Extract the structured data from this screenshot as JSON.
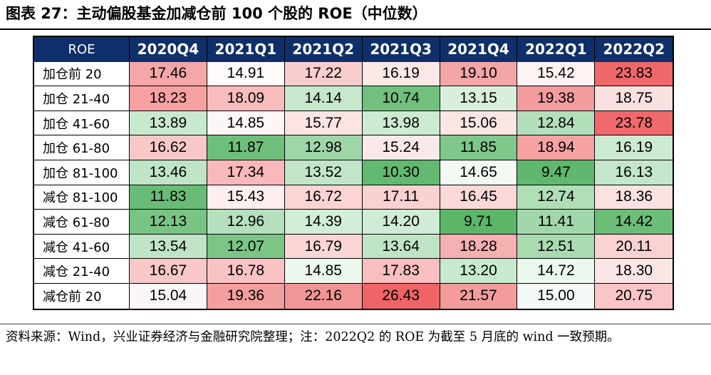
{
  "title": "图表 27：主动偏股基金加减仓前 100 个股的 ROE（中位数）",
  "table": {
    "corner_label": "ROE",
    "columns": [
      "2020Q4",
      "2021Q1",
      "2021Q2",
      "2021Q3",
      "2021Q4",
      "2022Q1",
      "2022Q2"
    ],
    "rows": [
      {
        "label": "加仓前 20",
        "values": [
          "17.46",
          "14.91",
          "17.22",
          "16.19",
          "19.10",
          "15.42",
          "23.83"
        ]
      },
      {
        "label": "加仓 21-40",
        "values": [
          "18.23",
          "18.09",
          "14.14",
          "10.74",
          "13.15",
          "19.38",
          "18.75"
        ]
      },
      {
        "label": "加仓 41-60",
        "values": [
          "13.89",
          "14.85",
          "15.77",
          "13.98",
          "15.06",
          "12.84",
          "23.78"
        ]
      },
      {
        "label": "加仓 61-80",
        "values": [
          "16.62",
          "11.87",
          "12.98",
          "15.24",
          "11.85",
          "18.94",
          "16.19"
        ]
      },
      {
        "label": "加仓 81-100",
        "values": [
          "13.46",
          "17.34",
          "13.52",
          "10.30",
          "14.65",
          "9.47",
          "16.13"
        ]
      },
      {
        "label": "减仓 81-100",
        "values": [
          "11.83",
          "15.43",
          "16.72",
          "17.11",
          "16.45",
          "12.74",
          "18.36"
        ]
      },
      {
        "label": "减仓 61-80",
        "values": [
          "12.13",
          "12.96",
          "14.39",
          "14.20",
          "9.71",
          "11.41",
          "14.42"
        ]
      },
      {
        "label": "减仓 41-60",
        "values": [
          "13.54",
          "12.07",
          "16.79",
          "13.64",
          "18.28",
          "12.51",
          "20.11"
        ]
      },
      {
        "label": "减仓 21-40",
        "values": [
          "16.67",
          "16.78",
          "14.85",
          "17.83",
          "13.20",
          "14.72",
          "18.30"
        ]
      },
      {
        "label": "减仓前 20",
        "values": [
          "15.04",
          "19.36",
          "22.16",
          "26.43",
          "21.57",
          "15.00",
          "20.75"
        ]
      }
    ],
    "cell_colors": [
      [
        "#f4a7a8",
        "#fffafa",
        "#f9cdce",
        "#fde8e8",
        "#f4a6a7",
        "#fff2f2",
        "#f0676a"
      ],
      [
        "#f7a0a1",
        "#f8bcbd",
        "#c7e8cd",
        "#71c07e",
        "#d8efdc",
        "#f39c9d",
        "#fbe0e1"
      ],
      [
        "#c9e9cf",
        "#fef6f6",
        "#fce4e4",
        "#cdebd2",
        "#fbe6e6",
        "#b2dfb9",
        "#f0696c"
      ],
      [
        "#f8c8c9",
        "#6fbf7c",
        "#9fd6a8",
        "#fbe8e8",
        "#7fc78b",
        "#f6a1a2",
        "#ccead2"
      ],
      [
        "#bfe4c6",
        "#f9b8b9",
        "#c2e5c8",
        "#62b970",
        "#f3faf4",
        "#5fb86d",
        "#c4e6ca"
      ],
      [
        "#69bc77",
        "#ffeeee",
        "#fcd4d4",
        "#fad1d1",
        "#fbd9d9",
        "#b0deb7",
        "#fbe2e2"
      ],
      [
        "#79c485",
        "#b6e0bd",
        "#d3eed8",
        "#d1ecd6",
        "#5cb66a",
        "#a2d7ab",
        "#6bbd78"
      ],
      [
        "#c0e5c6",
        "#7bc587",
        "#fcd6d6",
        "#bfe4c5",
        "#f5b0b1",
        "#a9dbb1",
        "#fad2d2"
      ],
      [
        "#f8c8c9",
        "#f9c3c4",
        "#ecf7ee",
        "#f9bebf",
        "#c8e9ce",
        "#ecf7ee",
        "#fbe6e6"
      ],
      [
        "#fdf6f6",
        "#f39e9f",
        "#f29596",
        "#ee6467",
        "#f49b9c",
        "#f5faf6",
        "#f9c5c6"
      ]
    ],
    "header_bg": "#0f2f6b"
  },
  "note": "资料来源：Wind，兴业证券经济与金融研究院整理；注：2022Q2 的 ROE 为截至 5 月底的 wind 一致预期。"
}
